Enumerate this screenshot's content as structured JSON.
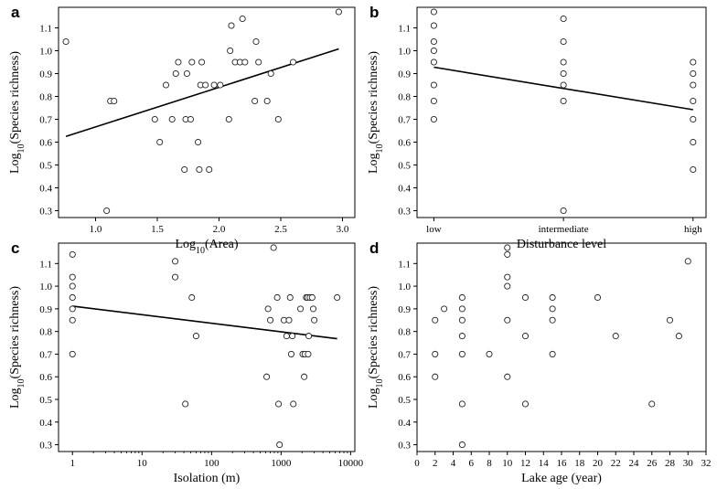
{
  "chart_data": [
    {
      "panel": "a",
      "type": "scatter",
      "xlabel": "Log10(Area)",
      "ylabel": "Log10(Species richness)",
      "xscale": "linear",
      "xlim": [
        0.7,
        3.1
      ],
      "ylim": [
        0.27,
        1.19
      ],
      "xticks": [
        1.0,
        1.5,
        2.0,
        2.5,
        3.0
      ],
      "xtick_labels": [
        "1.0",
        "1.5",
        "2.0",
        "2.5",
        "3.0"
      ],
      "yticks": [
        0.3,
        0.4,
        0.5,
        0.6,
        0.7,
        0.8,
        0.9,
        1.0,
        1.1
      ],
      "ytick_labels": [
        "0.3",
        "0.4",
        "0.5",
        "0.6",
        "0.7",
        "0.8",
        "0.9",
        "1.0",
        "1.1"
      ],
      "points": [
        [
          0.76,
          1.04
        ],
        [
          1.09,
          0.3
        ],
        [
          1.12,
          0.78
        ],
        [
          1.15,
          0.78
        ],
        [
          1.48,
          0.7
        ],
        [
          1.52,
          0.6
        ],
        [
          1.57,
          0.85
        ],
        [
          1.62,
          0.7
        ],
        [
          1.65,
          0.9
        ],
        [
          1.67,
          0.95
        ],
        [
          1.72,
          0.48
        ],
        [
          1.73,
          0.7
        ],
        [
          1.74,
          0.9
        ],
        [
          1.77,
          0.7
        ],
        [
          1.78,
          0.95
        ],
        [
          1.83,
          0.6
        ],
        [
          1.84,
          0.48
        ],
        [
          1.85,
          0.85
        ],
        [
          1.86,
          0.95
        ],
        [
          1.89,
          0.85
        ],
        [
          1.92,
          0.48
        ],
        [
          1.96,
          0.85
        ],
        [
          2.01,
          0.85
        ],
        [
          2.08,
          0.7
        ],
        [
          2.09,
          1.0
        ],
        [
          2.1,
          1.11
        ],
        [
          2.13,
          0.95
        ],
        [
          2.17,
          0.95
        ],
        [
          2.19,
          1.14
        ],
        [
          2.21,
          0.95
        ],
        [
          2.29,
          0.78
        ],
        [
          2.3,
          1.04
        ],
        [
          2.32,
          0.95
        ],
        [
          2.39,
          0.78
        ],
        [
          2.42,
          0.9
        ],
        [
          2.48,
          0.7
        ],
        [
          2.6,
          0.95
        ],
        [
          2.97,
          1.17
        ]
      ],
      "fit_line": [
        [
          0.76,
          0.625
        ],
        [
          2.97,
          1.008
        ]
      ],
      "grid": false
    },
    {
      "panel": "b",
      "type": "scatter",
      "xlabel": "Disturbance level",
      "ylabel": "Log10(Species richness)",
      "xscale": "categorical",
      "xlim": [
        -0.13,
        2.1
      ],
      "ylim": [
        0.27,
        1.19
      ],
      "categories": [
        "low",
        "intermediate",
        "high"
      ],
      "yticks": [
        0.3,
        0.4,
        0.5,
        0.6,
        0.7,
        0.8,
        0.9,
        1.0,
        1.1
      ],
      "ytick_labels": [
        "0.3",
        "0.4",
        "0.5",
        "0.6",
        "0.7",
        "0.8",
        "0.9",
        "1.0",
        "1.1"
      ],
      "points": [
        [
          0,
          1.17
        ],
        [
          0,
          1.11
        ],
        [
          0,
          1.04
        ],
        [
          0,
          1.0
        ],
        [
          0,
          0.95
        ],
        [
          0,
          0.85
        ],
        [
          0,
          0.78
        ],
        [
          0,
          0.7
        ],
        [
          1,
          1.14
        ],
        [
          1,
          1.04
        ],
        [
          1,
          0.95
        ],
        [
          1,
          0.9
        ],
        [
          1,
          0.85
        ],
        [
          1,
          0.78
        ],
        [
          1,
          0.3
        ],
        [
          2,
          0.95
        ],
        [
          2,
          0.9
        ],
        [
          2,
          0.85
        ],
        [
          2,
          0.78
        ],
        [
          2,
          0.7
        ],
        [
          2,
          0.6
        ],
        [
          2,
          0.48
        ]
      ],
      "fit_line": [
        [
          0,
          0.928
        ],
        [
          2,
          0.742
        ]
      ],
      "grid": false
    },
    {
      "panel": "c",
      "type": "scatter",
      "xlabel": "Isolation (m)",
      "ylabel": "Log10(Species richness)",
      "xscale": "log",
      "xlim": [
        0.63,
        11500
      ],
      "ylim": [
        0.27,
        1.19
      ],
      "xticks": [
        1,
        10,
        100,
        1000,
        10000
      ],
      "xtick_labels": [
        "1",
        "10",
        "100",
        "1000",
        "10000"
      ],
      "yticks": [
        0.3,
        0.4,
        0.5,
        0.6,
        0.7,
        0.8,
        0.9,
        1.0,
        1.1
      ],
      "ytick_labels": [
        "0.3",
        "0.4",
        "0.5",
        "0.6",
        "0.7",
        "0.8",
        "0.9",
        "1.0",
        "1.1"
      ],
      "points": [
        [
          1,
          1.14
        ],
        [
          1,
          1.04
        ],
        [
          1,
          1.0
        ],
        [
          1,
          0.95
        ],
        [
          1,
          0.9
        ],
        [
          1,
          0.85
        ],
        [
          1,
          0.7
        ],
        [
          30,
          1.11
        ],
        [
          30,
          1.04
        ],
        [
          42,
          0.48
        ],
        [
          52,
          0.95
        ],
        [
          60,
          0.78
        ],
        [
          620,
          0.6
        ],
        [
          650,
          0.9
        ],
        [
          700,
          0.85
        ],
        [
          780,
          1.17
        ],
        [
          880,
          0.95
        ],
        [
          920,
          0.48
        ],
        [
          950,
          0.3
        ],
        [
          1100,
          0.85
        ],
        [
          1200,
          0.78
        ],
        [
          1300,
          0.85
        ],
        [
          1350,
          0.95
        ],
        [
          1400,
          0.7
        ],
        [
          1450,
          0.78
        ],
        [
          1500,
          0.48
        ],
        [
          1900,
          0.9
        ],
        [
          2050,
          0.7
        ],
        [
          2150,
          0.6
        ],
        [
          2200,
          0.7
        ],
        [
          2300,
          0.95
        ],
        [
          2400,
          0.95
        ],
        [
          2450,
          0.7
        ],
        [
          2500,
          0.78
        ],
        [
          2600,
          0.95
        ],
        [
          2800,
          0.95
        ],
        [
          2900,
          0.9
        ],
        [
          3000,
          0.85
        ],
        [
          6400,
          0.95
        ]
      ],
      "fit_line": [
        [
          1,
          0.912
        ],
        [
          6400,
          0.768
        ]
      ],
      "grid": false
    },
    {
      "panel": "d",
      "type": "scatter",
      "xlabel": "Lake age (year)",
      "ylabel": "Log10(Species richness)",
      "xscale": "linear",
      "xlim": [
        0,
        32
      ],
      "ylim": [
        0.27,
        1.19
      ],
      "xticks": [
        0,
        2,
        4,
        6,
        8,
        10,
        12,
        14,
        16,
        18,
        20,
        22,
        24,
        26,
        28,
        30,
        32
      ],
      "xtick_labels": [
        "0",
        "2",
        "4",
        "6",
        "8",
        "10",
        "12",
        "14",
        "16",
        "18",
        "20",
        "22",
        "24",
        "26",
        "28",
        "30",
        "32"
      ],
      "yticks": [
        0.3,
        0.4,
        0.5,
        0.6,
        0.7,
        0.8,
        0.9,
        1.0,
        1.1
      ],
      "ytick_labels": [
        "0.3",
        "0.4",
        "0.5",
        "0.6",
        "0.7",
        "0.8",
        "0.9",
        "1.0",
        "1.1"
      ],
      "points": [
        [
          2,
          0.85
        ],
        [
          2,
          0.7
        ],
        [
          2,
          0.6
        ],
        [
          3,
          0.9
        ],
        [
          5,
          0.95
        ],
        [
          5,
          0.9
        ],
        [
          5,
          0.85
        ],
        [
          5,
          0.78
        ],
        [
          5,
          0.7
        ],
        [
          5,
          0.48
        ],
        [
          5,
          0.3
        ],
        [
          8,
          0.7
        ],
        [
          10,
          1.17
        ],
        [
          10,
          1.14
        ],
        [
          10,
          1.04
        ],
        [
          10,
          1.0
        ],
        [
          10,
          0.85
        ],
        [
          10,
          0.6
        ],
        [
          12,
          0.95
        ],
        [
          12,
          0.78
        ],
        [
          12,
          0.48
        ],
        [
          15,
          0.95
        ],
        [
          15,
          0.9
        ],
        [
          15,
          0.85
        ],
        [
          15,
          0.7
        ],
        [
          20,
          0.95
        ],
        [
          22,
          0.78
        ],
        [
          26,
          0.48
        ],
        [
          28,
          0.85
        ],
        [
          29,
          0.78
        ],
        [
          30,
          1.11
        ]
      ],
      "grid": false
    }
  ]
}
